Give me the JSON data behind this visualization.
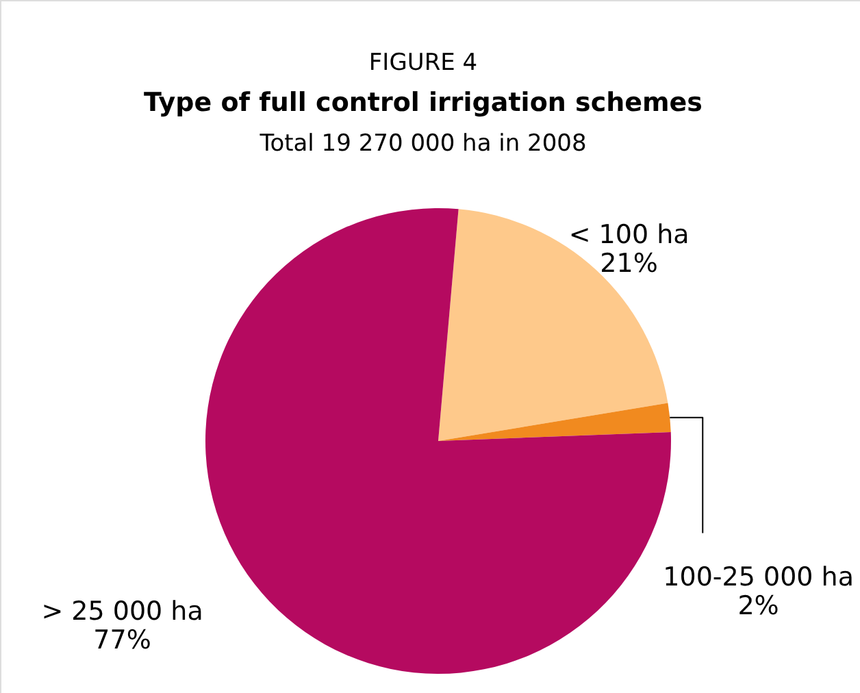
{
  "chart_data": {
    "type": "pie",
    "title": "Type of full control irrigation schemes",
    "subtitle": "Total 19 270 000 ha in 2008",
    "annotations": [
      "FIGURE 4"
    ],
    "categories": [
      "< 100 ha",
      "100-25 000 ha",
      "> 25 000 ha"
    ],
    "values": [
      21,
      2,
      77
    ],
    "value_labels": [
      "21%",
      "2%",
      "77%"
    ],
    "colors": [
      "#fec98b",
      "#f18a1f",
      "#b50a60"
    ]
  }
}
